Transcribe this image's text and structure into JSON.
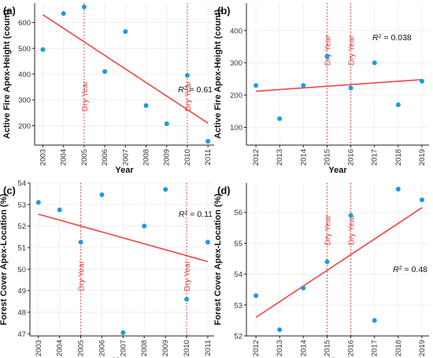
{
  "colors": {
    "point": "#1a9be6",
    "fit_line": "#f04545",
    "dry_line": "#e8433f",
    "axis": "#222222",
    "grid": "#ebebeb"
  },
  "chart_data": [
    {
      "panel_label": "(a)",
      "type": "scatter",
      "xlabel": "Year",
      "ylabel": "Active Fire Apex-Height (count)",
      "xlim": [
        2002.6,
        2011.3
      ],
      "ylim": [
        125,
        675
      ],
      "x_ticks": [
        2003,
        2004,
        2005,
        2006,
        2007,
        2008,
        2009,
        2010,
        2011
      ],
      "y_ticks": [
        200,
        300,
        400,
        500,
        600
      ],
      "points": [
        {
          "x": 2003,
          "y": 495
        },
        {
          "x": 2004,
          "y": 635
        },
        {
          "x": 2005,
          "y": 660
        },
        {
          "x": 2006,
          "y": 410
        },
        {
          "x": 2007,
          "y": 565
        },
        {
          "x": 2008,
          "y": 278
        },
        {
          "x": 2009,
          "y": 208
        },
        {
          "x": 2010,
          "y": 395
        },
        {
          "x": 2011,
          "y": 140
        }
      ],
      "trend": {
        "x": [
          2003,
          2011
        ],
        "y": [
          630,
          210
        ]
      },
      "dry_years": [
        2005,
        2010
      ],
      "dry_label": "Dry Year",
      "r2_text": "= 0.61"
    },
    {
      "panel_label": "(b)",
      "type": "scatter",
      "xlabel": "Year",
      "ylabel": "Active Fire Apex-Height (count)",
      "xlim": [
        2011.6,
        2019.3
      ],
      "ylim": [
        45,
        485
      ],
      "x_ticks": [
        2012,
        2013,
        2014,
        2015,
        2016,
        2017,
        2018,
        2019
      ],
      "y_ticks": [
        100,
        200,
        300,
        400
      ],
      "points": [
        {
          "x": 2012,
          "y": 230
        },
        {
          "x": 2013,
          "y": 127
        },
        {
          "x": 2014,
          "y": 230
        },
        {
          "x": 2015,
          "y": 320
        },
        {
          "x": 2016,
          "y": 222
        },
        {
          "x": 2017,
          "y": 300
        },
        {
          "x": 2018,
          "y": 170
        },
        {
          "x": 2019,
          "y": 243
        }
      ],
      "trend": {
        "x": [
          2012,
          2019
        ],
        "y": [
          212,
          248
        ]
      },
      "dry_years": [
        2015,
        2016
      ],
      "dry_label": "Dry Year",
      "r2_text": "= 0.038"
    },
    {
      "panel_label": "(c)",
      "type": "scatter",
      "xlabel": "Year",
      "ylabel": "Forest Cover Apex-Location (%)",
      "xlim": [
        2002.6,
        2011.3
      ],
      "ylim": [
        46.9,
        54.0
      ],
      "x_ticks": [
        2003,
        2004,
        2005,
        2006,
        2007,
        2008,
        2009,
        2010,
        2011
      ],
      "y_ticks": [
        47,
        48,
        49,
        50,
        51,
        52,
        53,
        54
      ],
      "points": [
        {
          "x": 2003,
          "y": 53.1
        },
        {
          "x": 2004,
          "y": 52.75
        },
        {
          "x": 2005,
          "y": 51.25
        },
        {
          "x": 2006,
          "y": 53.45
        },
        {
          "x": 2007,
          "y": 47.05
        },
        {
          "x": 2008,
          "y": 52.0
        },
        {
          "x": 2009,
          "y": 53.7
        },
        {
          "x": 2010,
          "y": 48.6
        },
        {
          "x": 2011,
          "y": 51.25
        }
      ],
      "trend": {
        "x": [
          2003,
          2011
        ],
        "y": [
          52.55,
          50.35
        ]
      },
      "dry_years": [
        2005,
        2010
      ],
      "dry_label": "Dry Year",
      "r2_text": "= 0.11"
    },
    {
      "panel_label": "(d)",
      "type": "scatter",
      "xlabel": "Year",
      "ylabel": "Forest Cover Apex-Location (%)",
      "xlim": [
        2011.6,
        2019.3
      ],
      "ylim": [
        52.0,
        56.95
      ],
      "x_ticks": [
        2012,
        2013,
        2014,
        2015,
        2016,
        2017,
        2018,
        2019
      ],
      "y_ticks": [
        52,
        53,
        54,
        55,
        56
      ],
      "points": [
        {
          "x": 2012,
          "y": 53.3
        },
        {
          "x": 2013,
          "y": 52.2
        },
        {
          "x": 2014,
          "y": 53.55
        },
        {
          "x": 2015,
          "y": 54.4
        },
        {
          "x": 2016,
          "y": 55.9
        },
        {
          "x": 2017,
          "y": 52.5
        },
        {
          "x": 2018,
          "y": 56.75
        },
        {
          "x": 2019,
          "y": 56.4
        }
      ],
      "trend": {
        "x": [
          2012,
          2019
        ],
        "y": [
          52.6,
          56.15
        ]
      },
      "dry_years": [
        2015,
        2016
      ],
      "dry_label": "Dry Year",
      "r2_text": "= 0.48"
    }
  ]
}
